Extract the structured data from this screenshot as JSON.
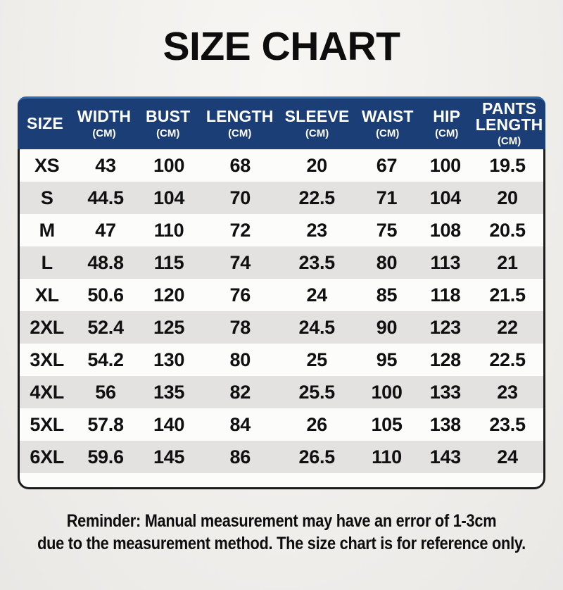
{
  "title": "SIZE CHART",
  "chart_data": {
    "type": "table",
    "title": "SIZE CHART",
    "unit_note": "(CM)",
    "columns": [
      {
        "label": "SIZE",
        "unit": ""
      },
      {
        "label": "WIDTH",
        "unit": "(CM)"
      },
      {
        "label": "BUST",
        "unit": "(CM)"
      },
      {
        "label": "LENGTH",
        "unit": "(CM)"
      },
      {
        "label": "SLEEVE",
        "unit": "(CM)"
      },
      {
        "label": "WAIST",
        "unit": "(CM)"
      },
      {
        "label": "HIP",
        "unit": "(CM)"
      },
      {
        "label": "PANTS LENGTH",
        "unit": "(CM)"
      }
    ],
    "rows": [
      [
        "XS",
        "43",
        "100",
        "68",
        "20",
        "67",
        "100",
        "19.5"
      ],
      [
        "S",
        "44.5",
        "104",
        "70",
        "22.5",
        "71",
        "104",
        "20"
      ],
      [
        "M",
        "47",
        "110",
        "72",
        "23",
        "75",
        "108",
        "20.5"
      ],
      [
        "L",
        "48.8",
        "115",
        "74",
        "23.5",
        "80",
        "113",
        "21"
      ],
      [
        "XL",
        "50.6",
        "120",
        "76",
        "24",
        "85",
        "118",
        "21.5"
      ],
      [
        "2XL",
        "52.4",
        "125",
        "78",
        "24.5",
        "90",
        "123",
        "22"
      ],
      [
        "3XL",
        "54.2",
        "130",
        "80",
        "25",
        "95",
        "128",
        "22.5"
      ],
      [
        "4XL",
        "56",
        "135",
        "82",
        "25.5",
        "100",
        "133",
        "23"
      ],
      [
        "5XL",
        "57.8",
        "140",
        "84",
        "26",
        "105",
        "138",
        "23.5"
      ],
      [
        "6XL",
        "59.6",
        "145",
        "86",
        "26.5",
        "110",
        "143",
        "24"
      ]
    ]
  },
  "footer": {
    "line1": "Reminder: Manual measurement may have an error of 1-3cm",
    "line2": "due to the measurement method. The size chart is for reference only."
  },
  "colors": {
    "page_bg": "#f2f0ed",
    "header_bg": "#1c3e76",
    "header_highlight": "#2e6db4",
    "header_text": "#ffffff",
    "row_bg": "#fcfcfb",
    "row_alt_bg": "#e3e2e0",
    "border": "#1b1b1b"
  }
}
